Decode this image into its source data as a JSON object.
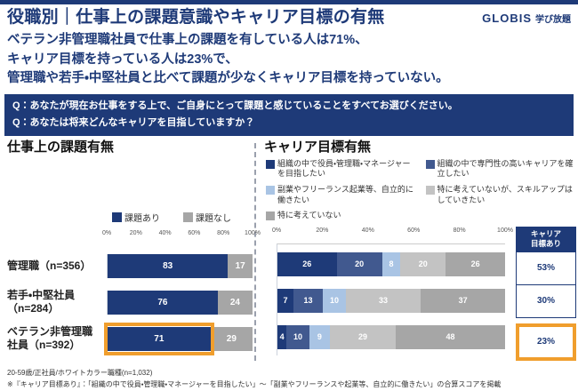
{
  "header": {
    "title": "役職別｜仕事上の課題意識やキャリア目標の有無",
    "logo_brand": "GLOBIS",
    "logo_service": "学び放題"
  },
  "summary": {
    "lines": [
      "ベテラン非管理職社員で仕事上の課題を有している人は71%、",
      "キャリア目標を持っている人は23%で、",
      "管理職や若手・中堅社員と比べて課題が少なくキャリア目標を持っていない。"
    ]
  },
  "questions": [
    "Q：あなたが現在お仕事をする上で、ご自身にとって課題と感じていることをすべてお選びください。",
    "Q：あなたは将来どんなキャリアを目指していますか？"
  ],
  "footnotes": [
    "20-59歳/正社員/ホワイトカラー職種(n=1,032)",
    "※『キャリア目標あり』：「組織の中で役員・管理職・マネージャーを目指したい」〜「副業やフリーランスや起業等、自立的に働きたい」の合算スコアを掲載"
  ],
  "colors": {
    "navy": "#1e3a78",
    "medium_blue": "#41598f",
    "light_blue": "#a9c4e4",
    "light_gray": "#c3c3c3",
    "mid_gray": "#a6a6a6",
    "highlight_orange": "#f09e2d"
  },
  "chart_data": [
    {
      "id": "work-issues",
      "type": "bar",
      "orientation": "horizontal",
      "stacked": true,
      "title": "仕事上の課題有無",
      "categories": [
        [
          "管理職（n=356）"
        ],
        [
          "若手・中堅社員",
          "（n=284）"
        ],
        [
          "ベテラン非管理職",
          "社員（n=392）"
        ]
      ],
      "series": [
        {
          "name": "課題あり",
          "color": "#1e3a78",
          "values": [
            83,
            76,
            71
          ]
        },
        {
          "name": "課題なし",
          "color": "#a6a6a6",
          "values": [
            17,
            24,
            29
          ]
        }
      ],
      "x_ticks": [
        "0%",
        "20%",
        "40%",
        "60%",
        "80%",
        "100%"
      ],
      "xlim": [
        0,
        100
      ],
      "legend_position": "top",
      "highlight": {
        "row": 2,
        "series": 0,
        "color": "#f09e2d"
      }
    },
    {
      "id": "career-goals",
      "type": "bar",
      "orientation": "horizontal",
      "stacked": true,
      "title": "キャリア目標有無",
      "categories": [
        [
          "管理職（n=356）"
        ],
        [
          "若手・中堅社員",
          "（n=284）"
        ],
        [
          "ベテラン非管理職",
          "社員（n=392）"
        ]
      ],
      "series": [
        {
          "name": "組織の中で役員・管理職・マネージャーを目指したい",
          "color": "#1e3a78",
          "values": [
            26,
            7,
            4
          ]
        },
        {
          "name": "組織の中で専門性の高いキャリアを確立したい",
          "color": "#41598f",
          "values": [
            20,
            13,
            10
          ]
        },
        {
          "name": "副業やフリーランス起業等、自立的に働きたい",
          "color": "#a9c4e4",
          "values": [
            8,
            10,
            9
          ]
        },
        {
          "name": "特に考えていないが、スキルアップはしていきたい",
          "color": "#c3c3c3",
          "values": [
            20,
            33,
            29
          ]
        },
        {
          "name": "特に考えていない",
          "color": "#a6a6a6",
          "values": [
            26,
            37,
            48
          ]
        }
      ],
      "legend_columns": [
        [
          0,
          2,
          4
        ],
        [
          1,
          3
        ]
      ],
      "x_ticks": [
        "0%",
        "20%",
        "40%",
        "60%",
        "80%",
        "100%"
      ],
      "xlim": [
        0,
        100
      ],
      "legend_position": "top",
      "summary_column": {
        "header_lines": [
          "キャリア",
          "目標あり"
        ],
        "values": [
          "53%",
          "30%",
          "23%"
        ],
        "highlight_row": 2
      }
    }
  ]
}
